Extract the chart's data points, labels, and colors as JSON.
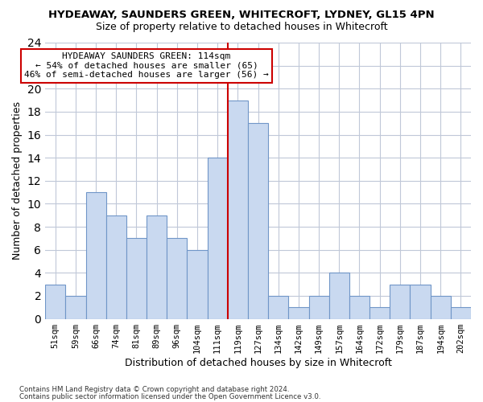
{
  "title": "HYDEAWAY, SAUNDERS GREEN, WHITECROFT, LYDNEY, GL15 4PN",
  "subtitle": "Size of property relative to detached houses in Whitecroft",
  "xlabel": "Distribution of detached houses by size in Whitecroft",
  "ylabel": "Number of detached properties",
  "categories": [
    "51sqm",
    "59sqm",
    "66sqm",
    "74sqm",
    "81sqm",
    "89sqm",
    "96sqm",
    "104sqm",
    "111sqm",
    "119sqm",
    "127sqm",
    "134sqm",
    "142sqm",
    "149sqm",
    "157sqm",
    "164sqm",
    "172sqm",
    "179sqm",
    "187sqm",
    "194sqm",
    "202sqm"
  ],
  "values": [
    3,
    2,
    11,
    9,
    7,
    9,
    7,
    6,
    14,
    19,
    17,
    2,
    1,
    2,
    4,
    2,
    1,
    3,
    3,
    2,
    1
  ],
  "bar_color": "#c9d9f0",
  "bar_edge_color": "#7096c8",
  "background_color": "#ffffff",
  "grid_color": "#c0c8d8",
  "marker_idx": 8,
  "marker_color": "#cc0000",
  "annotation_line1": "HYDEAWAY SAUNDERS GREEN: 114sqm",
  "annotation_line2": "← 54% of detached houses are smaller (65)",
  "annotation_line3": "46% of semi-detached houses are larger (56) →",
  "annotation_box_color": "#ffffff",
  "annotation_box_edge": "#cc0000",
  "ylim": [
    0,
    24
  ],
  "yticks": [
    0,
    2,
    4,
    6,
    8,
    10,
    12,
    14,
    16,
    18,
    20,
    22,
    24
  ],
  "footer1": "Contains HM Land Registry data © Crown copyright and database right 2024.",
  "footer2": "Contains public sector information licensed under the Open Government Licence v3.0."
}
